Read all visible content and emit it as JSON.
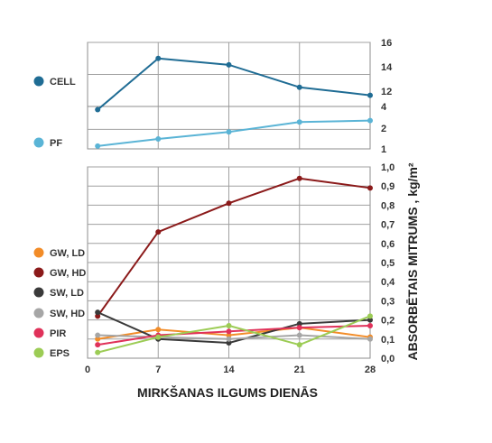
{
  "chart_data": {
    "type": "line",
    "xlabel": "MIRKŠANAS ILGUMS DIENĀS",
    "ylabel": "ABSORBĒTAIS MITRUMS , kg/m²",
    "x_ticks": [
      "0",
      "7",
      "14",
      "21",
      "28"
    ],
    "x": [
      1,
      7,
      14,
      21,
      28
    ],
    "xlim": [
      0,
      28
    ],
    "grid": true,
    "legend_position": "left",
    "panels": [
      {
        "id": "top",
        "ylim": [
          12,
          16
        ],
        "y_ticks": [
          "12",
          "14",
          "16"
        ],
        "series": [
          {
            "name": "CELL",
            "color": "#1f6c94",
            "values": [
              11.8,
              15.0,
              14.6,
              13.2,
              12.7
            ]
          }
        ]
      },
      {
        "id": "middle",
        "ylim": [
          1,
          4
        ],
        "y_ticks": [
          "1",
          "2",
          "4"
        ],
        "series": [
          {
            "name": "PF",
            "color": "#5ab4d6",
            "values": [
              1.2,
              1.7,
              2.2,
              2.9,
              3.0
            ]
          }
        ]
      },
      {
        "id": "bottom",
        "ylim": [
          0,
          1
        ],
        "y_ticks": [
          "0,0",
          "0,1",
          "0,2",
          "0,3",
          "0,4",
          "0,5",
          "0,6",
          "0,7",
          "0,8",
          "0,9",
          "1,0"
        ],
        "series": [
          {
            "name": "GW, LD",
            "color": "#f28c28",
            "values": [
              0.1,
              0.15,
              0.12,
              0.16,
              0.11
            ]
          },
          {
            "name": "GW, HD",
            "color": "#8b1a1a",
            "values": [
              0.22,
              0.66,
              0.81,
              0.94,
              0.89
            ]
          },
          {
            "name": "SW, LD",
            "color": "#3a3a3a",
            "values": [
              0.24,
              0.1,
              0.08,
              0.18,
              0.2
            ]
          },
          {
            "name": "SW, HD",
            "color": "#a6a6a6",
            "values": [
              0.12,
              0.11,
              0.1,
              0.12,
              0.1
            ]
          },
          {
            "name": "PIR",
            "color": "#e0325a",
            "values": [
              0.07,
              0.12,
              0.14,
              0.16,
              0.17
            ]
          },
          {
            "name": "EPS",
            "color": "#9ccc55",
            "values": [
              0.03,
              0.11,
              0.17,
              0.07,
              0.22
            ]
          }
        ]
      }
    ]
  }
}
